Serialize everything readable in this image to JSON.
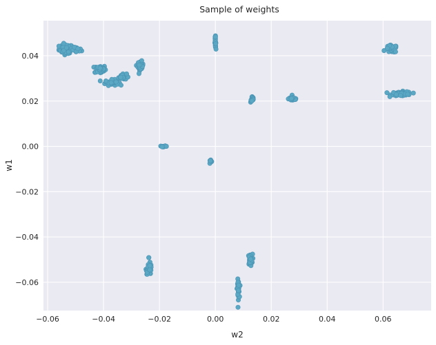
{
  "chart_data": {
    "type": "scatter",
    "title": "Sample of weights",
    "xlabel": "w2",
    "ylabel": "w1",
    "xlim": [
      -0.0615,
      0.0772
    ],
    "ylim": [
      -0.0725,
      0.0555
    ],
    "grid": true,
    "x_ticks": [
      -0.06,
      -0.04,
      -0.02,
      0.0,
      0.02,
      0.04,
      0.06
    ],
    "x_tick_labels": [
      "−0.06",
      "−0.04",
      "−0.02",
      "0.00",
      "0.02",
      "0.04",
      "0.06"
    ],
    "y_ticks": [
      -0.06,
      -0.04,
      -0.02,
      0.0,
      0.02,
      0.04
    ],
    "y_tick_labels": [
      "−0.06",
      "−0.04",
      "−0.02",
      "0.00",
      "0.02",
      "0.04"
    ],
    "colors": {
      "background": "#eaeaf2",
      "grid": "#ffffff",
      "marker": "#5ba8c4",
      "marker_edge": "#4b93b3",
      "text": "#262626"
    },
    "clusters": [
      {
        "x": -0.0535,
        "y": 0.043,
        "sx": 0.0012,
        "sy": 0.001,
        "n": 75
      },
      {
        "x": -0.0495,
        "y": 0.0425,
        "sx": 0.0008,
        "sy": 0.0006,
        "n": 25
      },
      {
        "x": -0.0412,
        "y": 0.034,
        "sx": 0.001,
        "sy": 0.0009,
        "n": 55
      },
      {
        "x": -0.037,
        "y": 0.0282,
        "sx": 0.0012,
        "sy": 0.0006,
        "n": 50
      },
      {
        "x": -0.0332,
        "y": 0.0308,
        "sx": 0.0007,
        "sy": 0.0007,
        "n": 35
      },
      {
        "x": -0.0268,
        "y": 0.0355,
        "sx": 0.0005,
        "sy": 0.001,
        "n": 35
      },
      {
        "x": -0.0185,
        "y": 0.0,
        "sx": 0.0006,
        "sy": 0.0001,
        "n": 15
      },
      {
        "x": 0.0,
        "y": 0.046,
        "sx": 0.0001,
        "sy": 0.0012,
        "n": 25
      },
      {
        "x": -0.0017,
        "y": -0.0068,
        "sx": 0.0002,
        "sy": 0.0004,
        "n": 10
      },
      {
        "x": 0.0132,
        "y": 0.0208,
        "sx": 0.0003,
        "sy": 0.0007,
        "n": 20
      },
      {
        "x": 0.0278,
        "y": 0.021,
        "sx": 0.0008,
        "sy": 0.0005,
        "n": 30
      },
      {
        "x": 0.063,
        "y": 0.043,
        "sx": 0.001,
        "sy": 0.0008,
        "n": 45
      },
      {
        "x": 0.0665,
        "y": 0.0232,
        "sx": 0.0018,
        "sy": 0.0005,
        "n": 60
      },
      {
        "x": -0.0237,
        "y": -0.054,
        "sx": 0.0005,
        "sy": 0.0012,
        "n": 35
      },
      {
        "x": -0.0238,
        "y": -0.049,
        "sx": 0.0001,
        "sy": 0.0001,
        "n": 2
      },
      {
        "x": 0.0082,
        "y": -0.063,
        "sx": 0.0002,
        "sy": 0.002,
        "n": 35
      },
      {
        "x": 0.0125,
        "y": -0.05,
        "sx": 0.0004,
        "sy": 0.0012,
        "n": 30
      }
    ]
  }
}
